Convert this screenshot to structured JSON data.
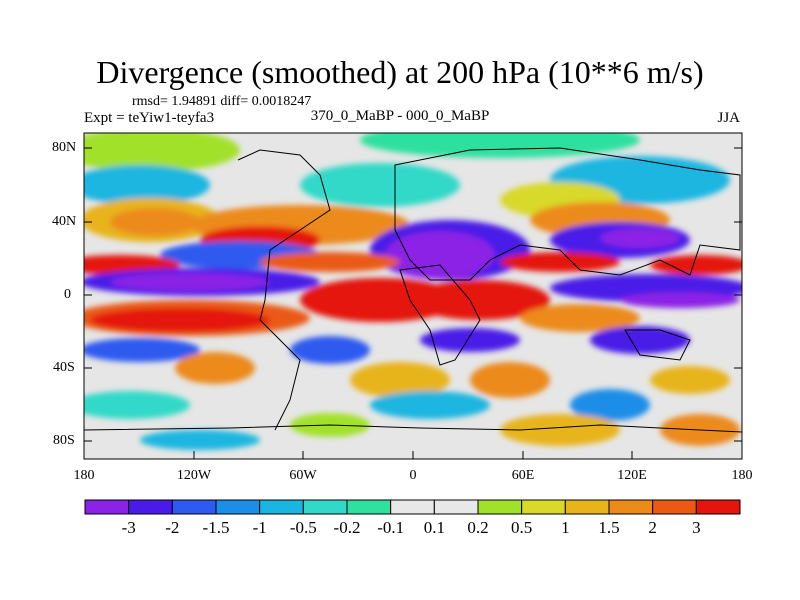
{
  "title": "Divergence (smoothed) at 200 hPa (10**6 m/s)",
  "stats": "rmsd= 1.94891  diff= 0.0018247",
  "experiment": "Expt = teYiw1-teyfa3",
  "comparison": "370_0_MaBP - 000_0_MaBP",
  "season": "JJA",
  "lat_labels": [
    "80N",
    "40N",
    "0",
    "40S",
    "80S"
  ],
  "lon_labels": [
    "180",
    "120W",
    "60W",
    "0",
    "60E",
    "120E",
    "180"
  ],
  "colorbar": {
    "labels": [
      "-3",
      "-2",
      "-1.5",
      "-1",
      "-0.5",
      "-0.2",
      "-0.1",
      "0.1",
      "0.2",
      "0.5",
      "1",
      "1.5",
      "2",
      "3"
    ],
    "colors": [
      "#8b23e6",
      "#4a1be8",
      "#2e5af0",
      "#1c8ee8",
      "#1ab6e0",
      "#32d9c8",
      "#2fe0a0",
      "#e8e8e8",
      "#a2e12a",
      "#d8d92a",
      "#e8b41c",
      "#ec8a1a",
      "#ea5a14",
      "#e4140e"
    ]
  }
}
